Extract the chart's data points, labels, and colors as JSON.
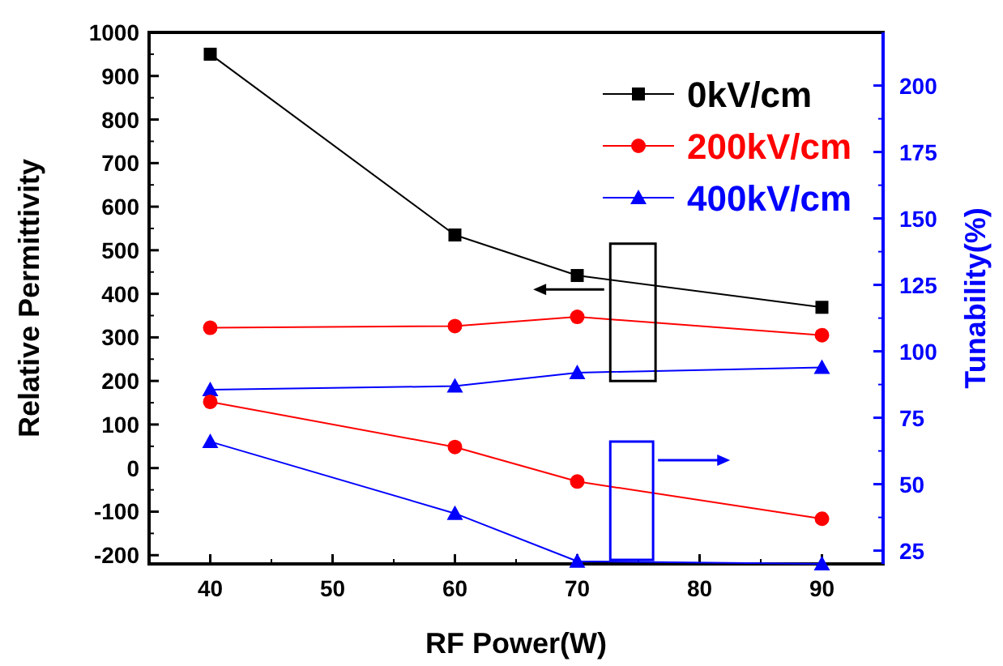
{
  "chart_data": {
    "type": "line",
    "xlabel": "RF Power(W)",
    "ylabel": "Relative Permittivity",
    "y2label": "Tunability(%)",
    "x": [
      40,
      60,
      70,
      90
    ],
    "xlim": [
      35,
      95
    ],
    "xticks": [
      40,
      50,
      60,
      70,
      80,
      90
    ],
    "ylim": [
      -220,
      1000
    ],
    "yticks": [
      -200,
      -100,
      0,
      100,
      200,
      300,
      400,
      500,
      600,
      700,
      800,
      900,
      1000
    ],
    "y2lim": [
      20,
      220
    ],
    "y2ticks": [
      25,
      50,
      75,
      100,
      125,
      150,
      175,
      200
    ],
    "legend": "top right",
    "grid": false,
    "line_style": "solid",
    "series": [
      {
        "name": "0kV/cm",
        "color": "#000000",
        "marker": "square",
        "values": [
          950,
          535,
          442,
          369
        ]
      },
      {
        "name": "200kV/cm",
        "color": "#ff0000",
        "marker": "circle",
        "values": [
          322,
          326,
          347,
          305
        ]
      },
      {
        "name": "400kV/cm",
        "color": "#0000ff",
        "marker": "triangle",
        "values": [
          180,
          188,
          219,
          231
        ]
      },
      {
        "color": "#ff0000",
        "marker": "circle",
        "axis": "y2",
        "values": [
          81,
          64,
          51,
          37
        ]
      },
      {
        "color": "#0000ff",
        "marker": "triangle",
        "axis": "y2",
        "values": [
          66,
          39,
          21,
          20
        ]
      }
    ]
  }
}
